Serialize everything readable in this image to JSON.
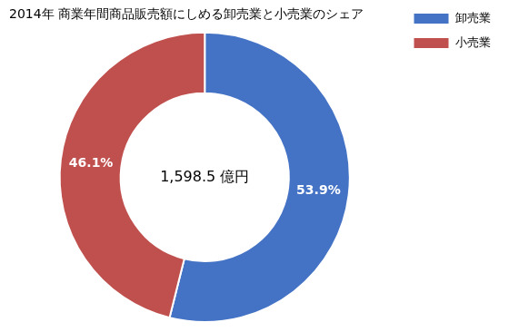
{
  "chart_data": {
    "type": "doughnut",
    "title": "2014年 商業年間商品販売額にしめる卸売業と小売業のシェア",
    "categories": [
      "卸売業",
      "小売業"
    ],
    "values": [
      53.9,
      46.1
    ],
    "value_labels": [
      "53.9%",
      "46.1%"
    ],
    "colors": [
      "#4472C4",
      "#C0504D"
    ],
    "data_labels": true,
    "annotation": "1,598.5 億円",
    "legend": "right"
  }
}
